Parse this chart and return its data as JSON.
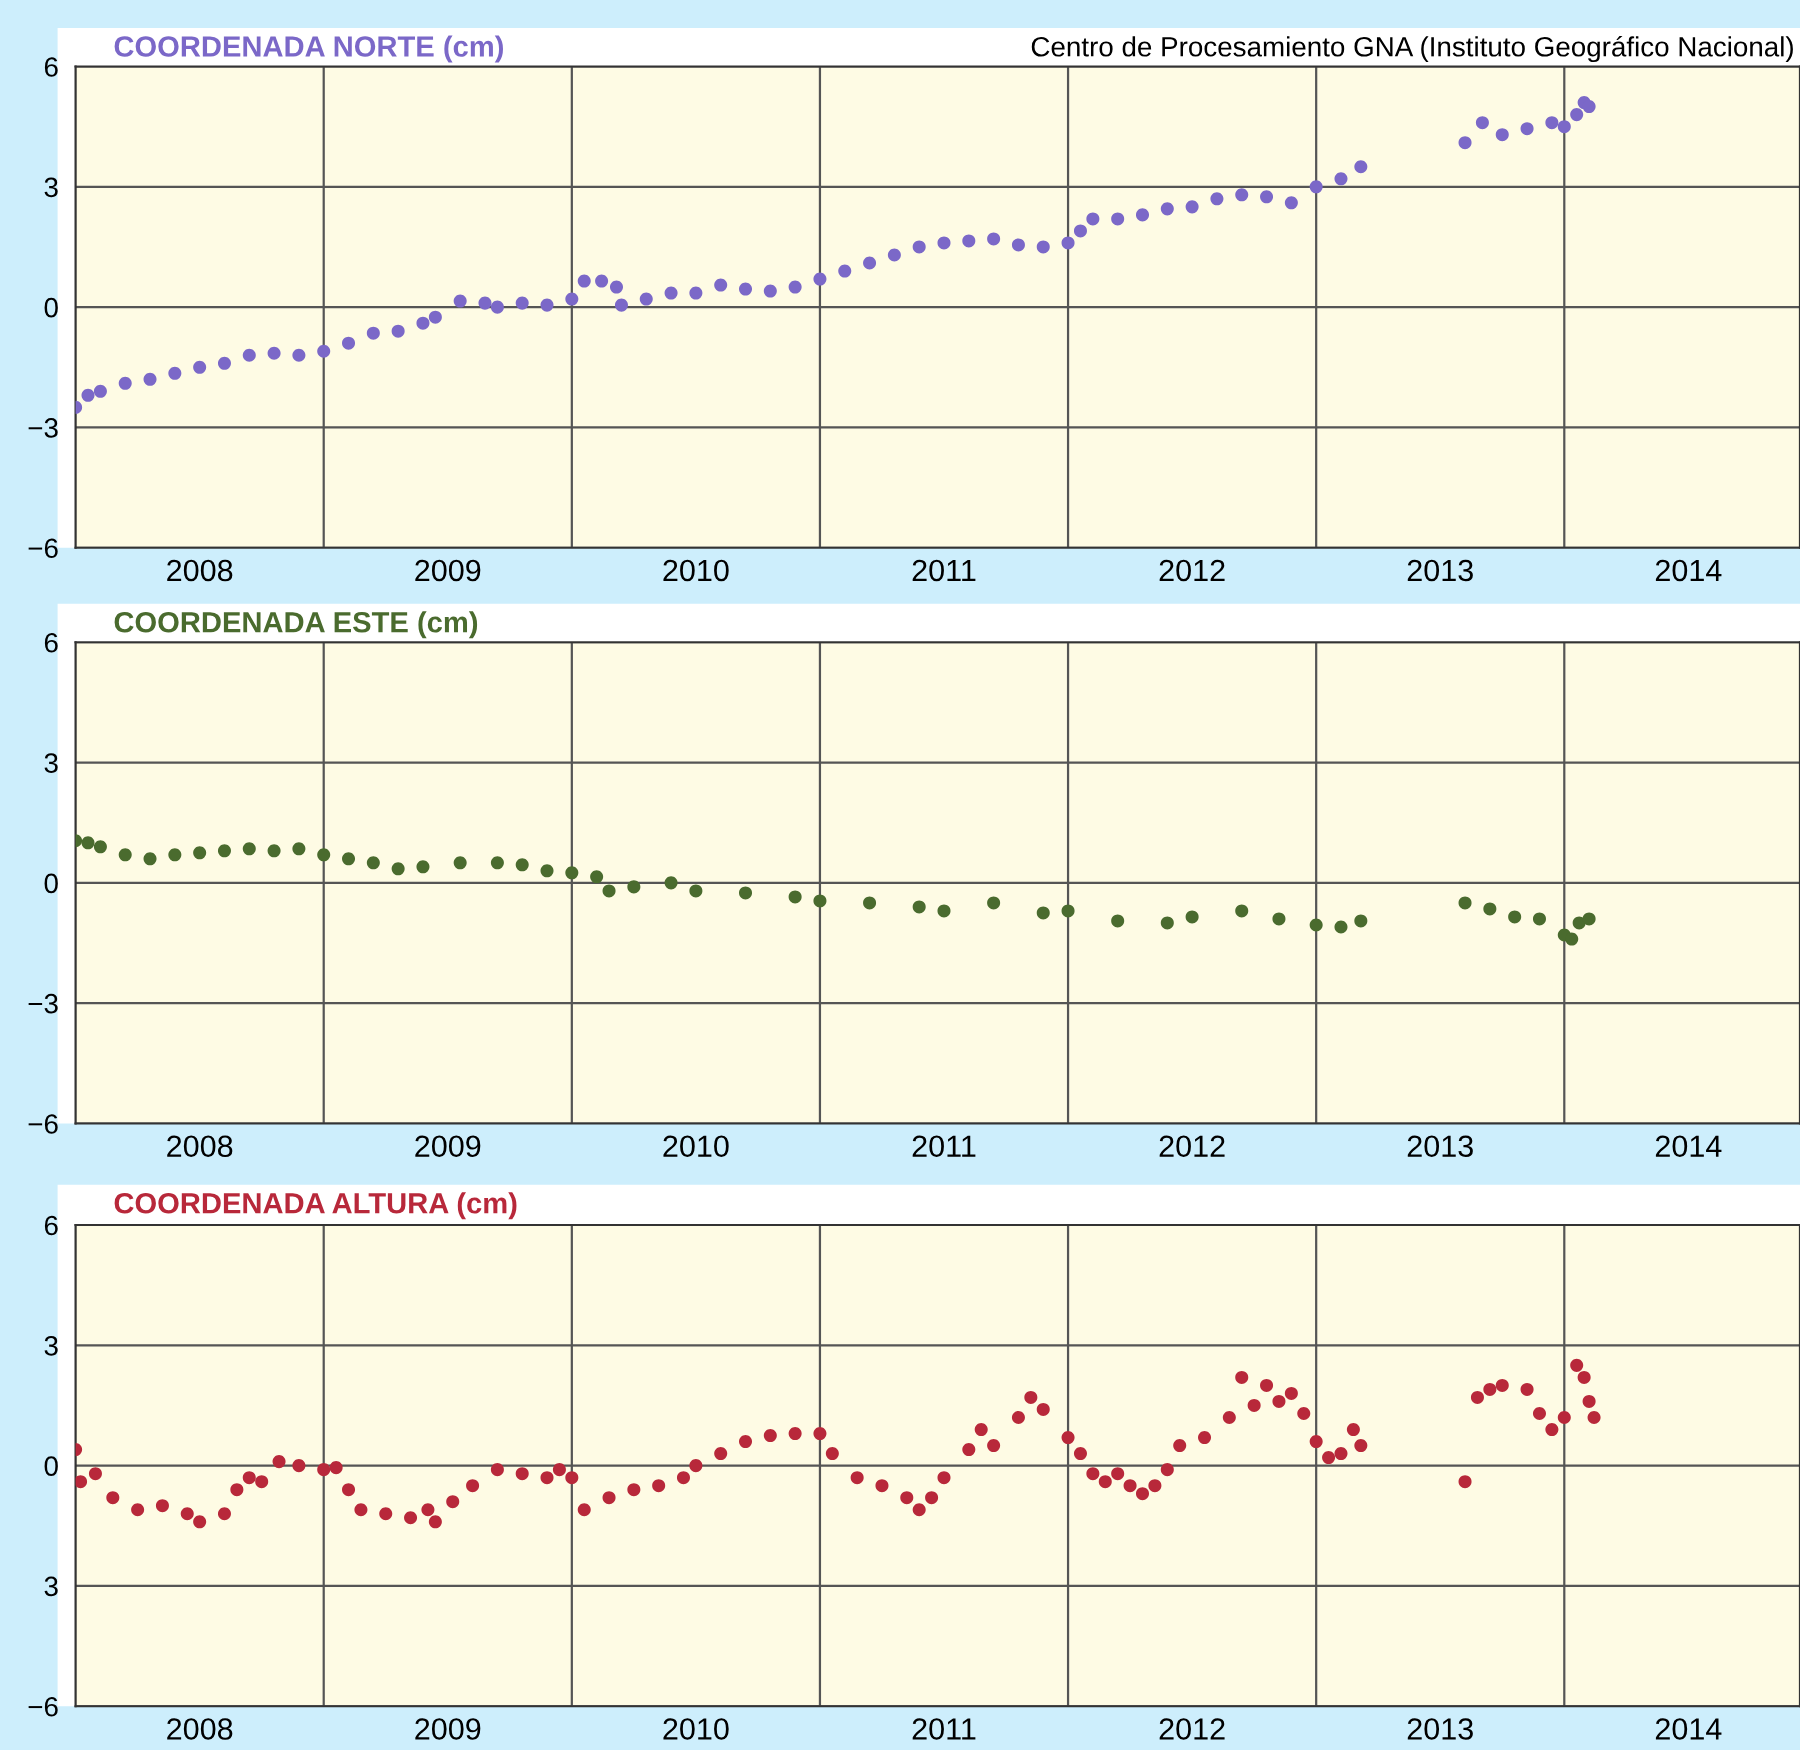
{
  "chart_data": [
    {
      "type": "scatter",
      "title": "COORDENADA NORTE (cm)",
      "annotations": [
        "Centro de Procesamiento GNA (Instituto Geográfico Nacional)"
      ],
      "marker": "circle",
      "grid": true,
      "xlim": [
        2008,
        2014.95
      ],
      "ylim": [
        -6,
        6
      ],
      "yticks": [
        6,
        3,
        0,
        -3,
        -6
      ],
      "xticks": [
        {
          "value": 2008.5,
          "label": "2008"
        },
        {
          "value": 2009,
          "label": null
        },
        {
          "value": 2009.5,
          "label": "2009"
        },
        {
          "value": 2010,
          "label": null
        },
        {
          "value": 2010.5,
          "label": "2010"
        },
        {
          "value": 2011,
          "label": null
        },
        {
          "value": 2011.5,
          "label": "2011"
        },
        {
          "value": 2012,
          "label": null
        },
        {
          "value": 2012.5,
          "label": "2012"
        },
        {
          "value": 2013,
          "label": null
        },
        {
          "value": 2013.5,
          "label": "2013"
        },
        {
          "value": 2014,
          "label": null
        },
        {
          "value": 2014.5,
          "label": "2014"
        }
      ],
      "series": [
        {
          "color": "#7b68c8",
          "x": [
            2008.0,
            2008.05,
            2008.1,
            2008.2,
            2008.3,
            2008.4,
            2008.5,
            2008.6,
            2008.7,
            2008.8,
            2008.9,
            2009.0,
            2009.1,
            2009.2,
            2009.3,
            2009.4,
            2009.45,
            2009.55,
            2009.65,
            2009.7,
            2009.8,
            2009.9,
            2010.0,
            2010.05,
            2010.12,
            2010.18,
            2010.2,
            2010.3,
            2010.4,
            2010.5,
            2010.6,
            2010.7,
            2010.8,
            2010.9,
            2011.0,
            2011.1,
            2011.2,
            2011.3,
            2011.4,
            2011.5,
            2011.6,
            2011.7,
            2011.8,
            2011.9,
            2012.0,
            2012.05,
            2012.1,
            2012.2,
            2012.3,
            2012.4,
            2012.5,
            2012.6,
            2012.7,
            2012.8,
            2012.9,
            2013.0,
            2013.1,
            2013.18,
            2013.6,
            2013.67,
            2013.75,
            2013.85,
            2013.95,
            2014.0,
            2014.05,
            2014.08,
            2014.1
          ],
          "values": [
            -2.5,
            -2.2,
            -2.1,
            -1.9,
            -1.8,
            -1.65,
            -1.5,
            -1.4,
            -1.2,
            -1.15,
            -1.2,
            -1.1,
            -0.9,
            -0.65,
            -0.6,
            -0.4,
            -0.25,
            0.15,
            0.1,
            0.0,
            0.1,
            0.05,
            0.2,
            0.65,
            0.65,
            0.5,
            0.05,
            0.2,
            0.35,
            0.35,
            0.55,
            0.45,
            0.4,
            0.5,
            0.7,
            0.9,
            1.1,
            1.3,
            1.5,
            1.6,
            1.65,
            1.7,
            1.55,
            1.5,
            1.6,
            1.9,
            2.2,
            2.2,
            2.3,
            2.45,
            2.5,
            2.7,
            2.8,
            2.75,
            2.6,
            3.0,
            3.2,
            3.5,
            4.1,
            4.6,
            4.3,
            4.45,
            4.6,
            4.5,
            4.8,
            5.1,
            5.0
          ]
        }
      ]
    },
    {
      "type": "scatter",
      "title": "COORDENADA ESTE (cm)",
      "marker": "circle",
      "grid": true,
      "xlim": [
        2008,
        2014.95
      ],
      "ylim": [
        -6,
        6
      ],
      "yticks": [
        6,
        3,
        0,
        -3,
        -6
      ],
      "xticks": [
        {
          "value": 2008.5,
          "label": "2008"
        },
        {
          "value": 2009,
          "label": null
        },
        {
          "value": 2009.5,
          "label": "2009"
        },
        {
          "value": 2010,
          "label": null
        },
        {
          "value": 2010.5,
          "label": "2010"
        },
        {
          "value": 2011,
          "label": null
        },
        {
          "value": 2011.5,
          "label": "2011"
        },
        {
          "value": 2012,
          "label": null
        },
        {
          "value": 2012.5,
          "label": "2012"
        },
        {
          "value": 2013,
          "label": null
        },
        {
          "value": 2013.5,
          "label": "2013"
        },
        {
          "value": 2014,
          "label": null
        },
        {
          "value": 2014.5,
          "label": "2014"
        }
      ],
      "series": [
        {
          "color": "#4a6b2e",
          "x": [
            2008.0,
            2008.05,
            2008.1,
            2008.2,
            2008.3,
            2008.4,
            2008.5,
            2008.6,
            2008.7,
            2008.8,
            2008.9,
            2009.0,
            2009.1,
            2009.2,
            2009.3,
            2009.4,
            2009.55,
            2009.7,
            2009.8,
            2009.9,
            2010.0,
            2010.1,
            2010.15,
            2010.25,
            2010.4,
            2010.5,
            2010.7,
            2010.9,
            2011.0,
            2011.2,
            2011.4,
            2011.5,
            2011.7,
            2011.9,
            2012.0,
            2012.2,
            2012.4,
            2012.5,
            2012.7,
            2012.85,
            2013.0,
            2013.1,
            2013.18,
            2013.6,
            2013.7,
            2013.8,
            2013.9,
            2014.0,
            2014.03,
            2014.06,
            2014.1
          ],
          "values": [
            1.05,
            1.0,
            0.9,
            0.7,
            0.6,
            0.7,
            0.75,
            0.8,
            0.85,
            0.8,
            0.85,
            0.7,
            0.6,
            0.5,
            0.35,
            0.4,
            0.5,
            0.5,
            0.45,
            0.3,
            0.25,
            0.15,
            -0.2,
            -0.1,
            0.0,
            -0.2,
            -0.25,
            -0.35,
            -0.45,
            -0.5,
            -0.6,
            -0.7,
            -0.5,
            -0.75,
            -0.7,
            -0.95,
            -1.0,
            -0.85,
            -0.7,
            -0.9,
            -1.05,
            -1.1,
            -0.95,
            -0.5,
            -0.65,
            -0.85,
            -0.9,
            -1.3,
            -1.4,
            -1.0,
            -0.9
          ]
        }
      ]
    },
    {
      "type": "scatter",
      "title": "COORDENADA ALTURA (cm)",
      "marker": "circle",
      "grid": true,
      "xlim": [
        2008,
        2014.95
      ],
      "ylim": [
        -6,
        6
      ],
      "yticks": [
        6,
        3,
        0,
        {
          "value": -3,
          "label": "3"
        },
        -6
      ],
      "xticks": [
        {
          "value": 2008.5,
          "label": "2008"
        },
        {
          "value": 2009,
          "label": null
        },
        {
          "value": 2009.5,
          "label": "2009"
        },
        {
          "value": 2010,
          "label": null
        },
        {
          "value": 2010.5,
          "label": "2010"
        },
        {
          "value": 2011,
          "label": null
        },
        {
          "value": 2011.5,
          "label": "2011"
        },
        {
          "value": 2012,
          "label": null
        },
        {
          "value": 2012.5,
          "label": "2012"
        },
        {
          "value": 2013,
          "label": null
        },
        {
          "value": 2013.5,
          "label": "2013"
        },
        {
          "value": 2014,
          "label": null
        },
        {
          "value": 2014.5,
          "label": "2014"
        }
      ],
      "series": [
        {
          "color": "#b8283a",
          "x": [
            2008.0,
            2008.02,
            2008.08,
            2008.15,
            2008.25,
            2008.35,
            2008.45,
            2008.5,
            2008.6,
            2008.65,
            2008.7,
            2008.75,
            2008.82,
            2008.9,
            2009.0,
            2009.05,
            2009.1,
            2009.15,
            2009.25,
            2009.35,
            2009.42,
            2009.45,
            2009.52,
            2009.6,
            2009.7,
            2009.8,
            2009.9,
            2009.95,
            2010.0,
            2010.05,
            2010.15,
            2010.25,
            2010.35,
            2010.45,
            2010.5,
            2010.6,
            2010.7,
            2010.8,
            2010.9,
            2011.0,
            2011.05,
            2011.15,
            2011.25,
            2011.35,
            2011.4,
            2011.45,
            2011.5,
            2011.6,
            2011.65,
            2011.7,
            2011.8,
            2011.85,
            2011.9,
            2012.0,
            2012.05,
            2012.1,
            2012.15,
            2012.2,
            2012.25,
            2012.3,
            2012.35,
            2012.4,
            2012.45,
            2012.55,
            2012.65,
            2012.7,
            2012.75,
            2012.8,
            2012.85,
            2012.9,
            2012.95,
            2013.0,
            2013.05,
            2013.1,
            2013.15,
            2013.18,
            2013.6,
            2013.65,
            2013.7,
            2013.75,
            2013.85,
            2013.9,
            2013.95,
            2014.0,
            2014.05,
            2014.08,
            2014.1,
            2014.12
          ],
          "values": [
            0.4,
            -0.4,
            -0.2,
            -0.8,
            -1.1,
            -1.0,
            -1.2,
            -1.4,
            -1.2,
            -0.6,
            -0.3,
            -0.4,
            0.1,
            0.0,
            -0.1,
            -0.05,
            -0.6,
            -1.1,
            -1.2,
            -1.3,
            -1.1,
            -1.4,
            -0.9,
            -0.5,
            -0.1,
            -0.2,
            -0.3,
            -0.1,
            -0.3,
            -1.1,
            -0.8,
            -0.6,
            -0.5,
            -0.3,
            0.0,
            0.3,
            0.6,
            0.75,
            0.8,
            0.8,
            0.3,
            -0.3,
            -0.5,
            -0.8,
            -1.1,
            -0.8,
            -0.3,
            0.4,
            0.9,
            0.5,
            1.2,
            1.7,
            1.4,
            0.7,
            0.3,
            -0.2,
            -0.4,
            -0.2,
            -0.5,
            -0.7,
            -0.5,
            -0.1,
            0.5,
            0.7,
            1.2,
            2.2,
            1.5,
            2.0,
            1.6,
            1.8,
            1.3,
            0.6,
            0.2,
            0.3,
            0.9,
            0.5,
            -0.4,
            1.7,
            1.9,
            2.0,
            1.9,
            1.3,
            0.9,
            1.2,
            2.5,
            2.2,
            1.6,
            1.2
          ]
        }
      ]
    }
  ]
}
